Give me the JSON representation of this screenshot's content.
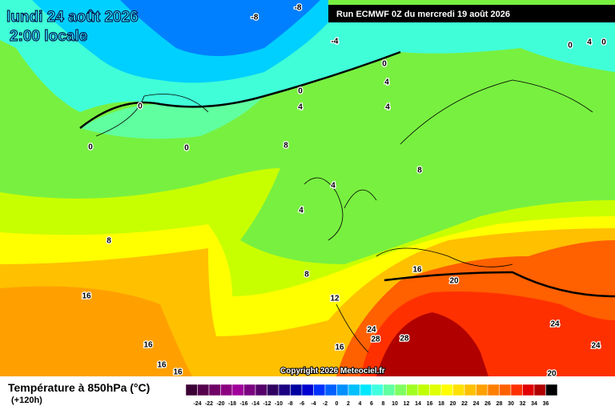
{
  "header": {
    "date": "lundi 24 août 2026",
    "time": "2:00 locale",
    "run": "Run ECMWF 0Z du mercredi 19 août 2026"
  },
  "map": {
    "copyright": "Copyright 2026 Meteociel.fr",
    "contour_labels": [
      -8,
      -8,
      -4,
      0,
      0,
      0,
      0,
      0,
      4,
      4,
      4,
      8,
      8,
      4,
      4,
      8,
      8,
      16,
      16,
      20,
      12,
      24,
      28,
      28,
      16,
      16,
      16,
      16,
      24,
      24,
      20,
      0,
      4,
      0
    ]
  },
  "legend": {
    "title": "Température à 850hPa (°C)",
    "lead": "(+120h)",
    "ticks": [
      -24,
      -22,
      -20,
      -18,
      -16,
      -14,
      -12,
      -10,
      -8,
      -6,
      -4,
      -2,
      0,
      2,
      4,
      6,
      8,
      10,
      12,
      14,
      16,
      18,
      20,
      22,
      24,
      26,
      28,
      30,
      32,
      34,
      36
    ],
    "colors": [
      "#3a0035",
      "#55004c",
      "#700066",
      "#8c0080",
      "#a0009a",
      "#7a0080",
      "#55006a",
      "#300060",
      "#1a0080",
      "#0000a0",
      "#0000d0",
      "#0030ff",
      "#0060ff",
      "#0090ff",
      "#00c0ff",
      "#00e8ff",
      "#40ffe0",
      "#60ffa0",
      "#80ff60",
      "#a0ff20",
      "#c0ff00",
      "#e0ff00",
      "#ffff00",
      "#ffe000",
      "#ffc000",
      "#ffa000",
      "#ff8000",
      "#ff6000",
      "#ff3000",
      "#e00000",
      "#b00000",
      "#000000"
    ]
  }
}
